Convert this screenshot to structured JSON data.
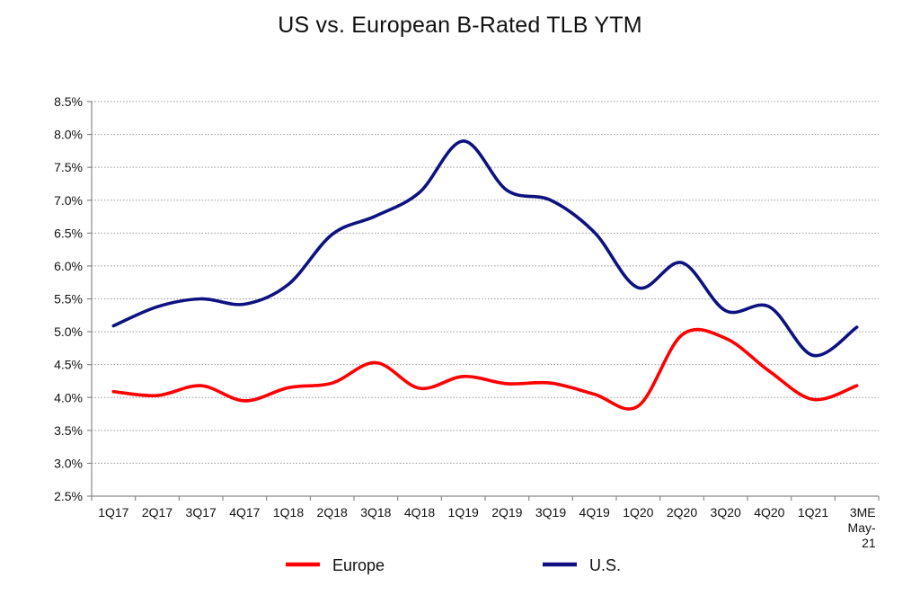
{
  "chart_data": {
    "type": "line",
    "title": "US vs. European B-Rated TLB YTM",
    "xlabel": "",
    "ylabel": "",
    "categories": [
      "1Q17",
      "2Q17",
      "3Q17",
      "4Q17",
      "1Q18",
      "2Q18",
      "3Q18",
      "4Q18",
      "1Q19",
      "2Q19",
      "3Q19",
      "4Q19",
      "1Q20",
      "2Q20",
      "3Q20",
      "4Q20",
      "1Q21",
      "3ME May-21"
    ],
    "x_tick_labels": [
      [
        "1Q17"
      ],
      [
        "2Q17"
      ],
      [
        "3Q17"
      ],
      [
        "4Q17"
      ],
      [
        "1Q18"
      ],
      [
        "2Q18"
      ],
      [
        "3Q18"
      ],
      [
        "4Q18"
      ],
      [
        "1Q19"
      ],
      [
        "2Q19"
      ],
      [
        "3Q19"
      ],
      [
        "4Q19"
      ],
      [
        "1Q20"
      ],
      [
        "2Q20"
      ],
      [
        "3Q20"
      ],
      [
        "4Q20"
      ],
      [
        "1Q21"
      ],
      [
        "3ME",
        "May-",
        "21"
      ]
    ],
    "y_tick_labels": [
      "2.5%",
      "3.0%",
      "3.5%",
      "4.0%",
      "4.5%",
      "5.0%",
      "5.5%",
      "6.0%",
      "6.5%",
      "7.0%",
      "7.5%",
      "8.0%",
      "8.5%"
    ],
    "ylim": [
      2.5,
      8.5
    ],
    "y_step": 0.5,
    "grid": "horizontal dotted",
    "legend_position": "bottom",
    "series": [
      {
        "name": "Europe",
        "color": "#ff0000",
        "values": [
          4.09,
          4.03,
          4.18,
          3.95,
          4.15,
          4.22,
          4.53,
          4.14,
          4.32,
          4.21,
          4.22,
          4.05,
          3.87,
          4.95,
          4.9,
          4.4,
          3.97,
          4.18
        ]
      },
      {
        "name": "U.S.",
        "color": "#0d1280",
        "values": [
          5.09,
          5.38,
          5.5,
          5.42,
          5.72,
          6.48,
          6.76,
          7.12,
          7.9,
          7.15,
          7.0,
          6.51,
          5.67,
          6.05,
          5.32,
          5.38,
          4.64,
          5.07
        ]
      }
    ]
  }
}
